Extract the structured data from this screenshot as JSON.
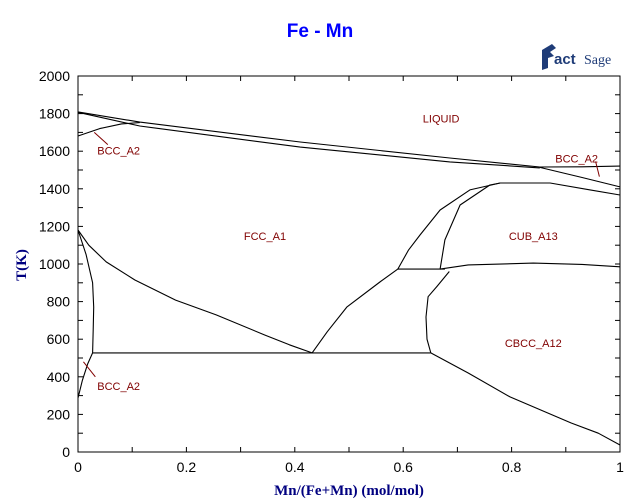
{
  "chart_data": {
    "type": "line",
    "title": "Fe - Mn",
    "xlabel": "Mn/(Fe+Mn) (mol/mol)",
    "ylabel": "T(K)",
    "xlim": [
      0,
      1
    ],
    "ylim": [
      0,
      2000
    ],
    "x_ticks": [
      "0",
      "0.2",
      "0.4",
      "0.6",
      "0.8",
      "1"
    ],
    "y_ticks": [
      "0",
      "200",
      "400",
      "600",
      "800",
      "1000",
      "1200",
      "1400",
      "1600",
      "1800",
      "2000"
    ],
    "grid": false,
    "line_color": "#000000",
    "label_color": "#800000",
    "title_color": "#0000ff",
    "axis_title_color": "#000080",
    "phase_labels": [
      {
        "text": "LIQUID",
        "x": 0.67,
        "T": 1775
      },
      {
        "text": "FCC_A1",
        "x": 0.345,
        "T": 1150
      },
      {
        "text": "CUB_A13",
        "x": 0.84,
        "T": 1150
      },
      {
        "text": "CBCC_A12",
        "x": 0.84,
        "T": 580
      },
      {
        "text": "BCC_A2",
        "x": 0.075,
        "T": 1605,
        "leader": [
          [
            0.03,
            1700
          ],
          [
            0.055,
            1635
          ]
        ]
      },
      {
        "text": "BCC_A2",
        "x": 0.075,
        "T": 350,
        "leader": [
          [
            0.01,
            480
          ],
          [
            0.032,
            400
          ]
        ]
      },
      {
        "text": "BCC_A2",
        "x": 0.92,
        "T": 1560,
        "leader": [
          [
            0.955,
            1545
          ],
          [
            0.962,
            1465
          ]
        ]
      }
    ],
    "boundaries": [
      {
        "points": [
          [
            0,
            1809
          ],
          [
            0.114,
            1755
          ],
          [
            0.41,
            1649
          ],
          [
            0.686,
            1564
          ],
          [
            0.852,
            1516
          ],
          [
            0.93,
            1517
          ],
          [
            1,
            1521
          ]
        ]
      },
      {
        "points": [
          [
            0,
            1807
          ],
          [
            0.114,
            1734
          ],
          [
            0.41,
            1622
          ],
          [
            0.686,
            1543
          ],
          [
            0.852,
            1511
          ]
        ]
      },
      {
        "points": [
          [
            0.852,
            1514
          ],
          [
            0.93,
            1460
          ],
          [
            1,
            1410
          ]
        ]
      },
      {
        "points": [
          [
            0,
            1681
          ],
          [
            0.04,
            1720
          ],
          [
            0.08,
            1745
          ],
          [
            0.114,
            1752
          ]
        ]
      },
      {
        "points": [
          [
            0.59,
            973
          ],
          [
            0.61,
            1075
          ],
          [
            0.631,
            1154
          ],
          [
            0.668,
            1287
          ],
          [
            0.723,
            1394
          ],
          [
            0.779,
            1431
          ],
          [
            0.871,
            1431
          ],
          [
            0.945,
            1394
          ],
          [
            1,
            1367
          ]
        ]
      },
      {
        "points": [
          [
            0.668,
            973
          ],
          [
            0.677,
            1128
          ],
          [
            0.705,
            1314
          ],
          [
            0.76,
            1420
          ],
          [
            0.779,
            1431
          ]
        ]
      },
      {
        "points": [
          [
            0.59,
            973
          ],
          [
            0.677,
            973
          ]
        ]
      },
      {
        "points": [
          [
            0.668,
            973
          ],
          [
            0.72,
            995
          ],
          [
            0.84,
            1005
          ],
          [
            0.93,
            998
          ],
          [
            1,
            985
          ]
        ]
      },
      {
        "points": [
          [
            0.685,
            960
          ],
          [
            0.662,
            880
          ],
          [
            0.646,
            826
          ],
          [
            0.642,
            718
          ],
          [
            0.644,
            600
          ],
          [
            0.651,
            527
          ]
        ]
      },
      {
        "points": [
          [
            0.027,
            527
          ],
          [
            0.651,
            527
          ]
        ]
      },
      {
        "points": [
          [
            0,
            1181
          ],
          [
            0.02,
            1100
          ],
          [
            0.052,
            1011
          ],
          [
            0.105,
            915
          ],
          [
            0.18,
            808
          ],
          [
            0.255,
            729
          ],
          [
            0.345,
            622
          ],
          [
            0.39,
            570
          ],
          [
            0.432,
            527
          ]
        ]
      },
      {
        "points": [
          [
            0.432,
            527
          ],
          [
            0.46,
            640
          ],
          [
            0.496,
            771
          ],
          [
            0.557,
            904
          ],
          [
            0.59,
            973
          ]
        ]
      },
      {
        "points": [
          [
            0.651,
            527
          ],
          [
            0.72,
            420
          ],
          [
            0.797,
            293
          ],
          [
            0.91,
            154
          ],
          [
            0.96,
            100
          ],
          [
            1,
            37
          ]
        ]
      },
      {
        "points": [
          [
            0,
            1181
          ],
          [
            0.015,
            1050
          ],
          [
            0.027,
            900
          ],
          [
            0.029,
            771
          ],
          [
            0.028,
            650
          ],
          [
            0.027,
            527
          ],
          [
            0.018,
            470
          ],
          [
            0.008,
            380
          ],
          [
            0,
            287
          ]
        ]
      }
    ]
  },
  "logo": {
    "text": "FactSage"
  }
}
